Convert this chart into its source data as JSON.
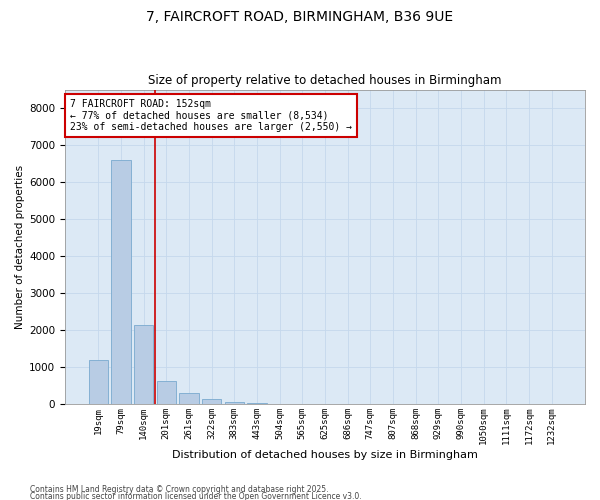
{
  "title_line1": "7, FAIRCROFT ROAD, BIRMINGHAM, B36 9UE",
  "title_line2": "Size of property relative to detached houses in Birmingham",
  "xlabel": "Distribution of detached houses by size in Birmingham",
  "ylabel": "Number of detached properties",
  "categories": [
    "19sqm",
    "79sqm",
    "140sqm",
    "201sqm",
    "261sqm",
    "322sqm",
    "383sqm",
    "443sqm",
    "504sqm",
    "565sqm",
    "625sqm",
    "686sqm",
    "747sqm",
    "807sqm",
    "868sqm",
    "929sqm",
    "990sqm",
    "1050sqm",
    "1111sqm",
    "1172sqm",
    "1232sqm"
  ],
  "values": [
    1180,
    6600,
    2130,
    620,
    290,
    130,
    55,
    25,
    12,
    5,
    4,
    2,
    2,
    1,
    0,
    0,
    0,
    0,
    0,
    0,
    0
  ],
  "bar_color": "#b8cce4",
  "bar_edge_color": "#7aaacf",
  "vline_x_index": 2.5,
  "vline_color": "#cc0000",
  "annotation_text": "7 FAIRCROFT ROAD: 152sqm\n← 77% of detached houses are smaller (8,534)\n23% of semi-detached houses are larger (2,550) →",
  "annotation_box_color": "#ffffff",
  "annotation_box_edge": "#cc0000",
  "ylim": [
    0,
    8500
  ],
  "yticks": [
    0,
    1000,
    2000,
    3000,
    4000,
    5000,
    6000,
    7000,
    8000
  ],
  "grid_color": "#c5d8ec",
  "background_color": "#dce9f5",
  "fig_background": "#ffffff",
  "footer_line1": "Contains HM Land Registry data © Crown copyright and database right 2025.",
  "footer_line2": "Contains public sector information licensed under the Open Government Licence v3.0."
}
